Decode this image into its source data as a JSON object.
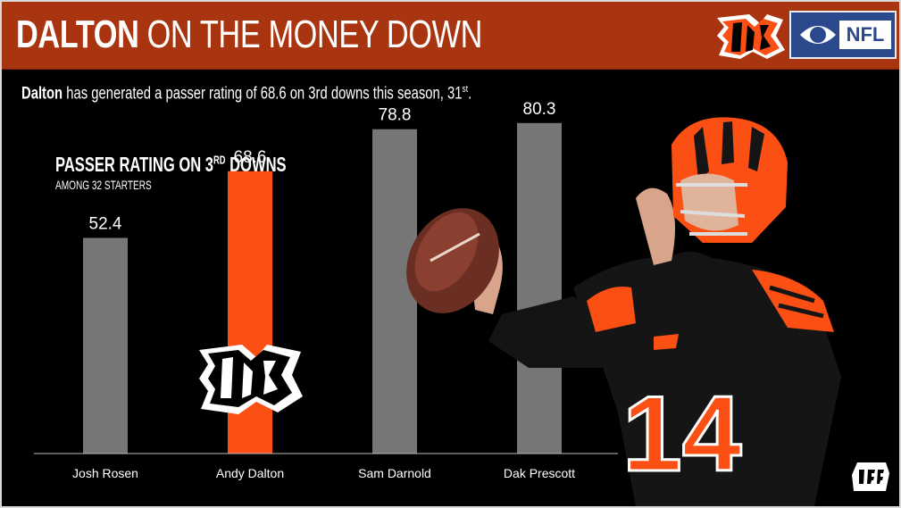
{
  "header": {
    "title_bold": "DALTON",
    "title_rest": "ON THE MONEY DOWN",
    "nfl_label": "NFL"
  },
  "subtitle": {
    "name": "Dalton",
    "text": "has generated a passer rating of 68.6 on 3rd downs this season, 31",
    "ordinal": "st",
    "end": "."
  },
  "chart_data": {
    "type": "bar",
    "title": "PASSER RATING ON 3",
    "title_sup": "RD",
    "title_end": "DOWNS",
    "subtitle": "AMONG 32 STARTERS",
    "categories": [
      "Josh Rosen",
      "Andy Dalton",
      "Sam Darnold",
      "Dak Prescott"
    ],
    "values": [
      52.4,
      68.6,
      78.8,
      80.3
    ],
    "value_labels": [
      "52.4",
      "68.6",
      "78.8",
      "80.3"
    ],
    "highlight_index": 1,
    "ylim": [
      0,
      100
    ],
    "colors": {
      "default": "#767676",
      "highlight": "#fb4f14",
      "axis": "#bbbbbb"
    }
  },
  "colors": {
    "background": "#000000",
    "header_bg": "#a83510",
    "bengals_orange": "#fb4f14",
    "cbs_blue": "#2b4a8d"
  },
  "icons": {
    "team_logo": "bengals-b-logo",
    "network_logo": "cbs-eye-logo",
    "watermark": "pff-logo",
    "player": "quarterback-number-14-photo"
  },
  "player": {
    "jersey_number": "14"
  }
}
